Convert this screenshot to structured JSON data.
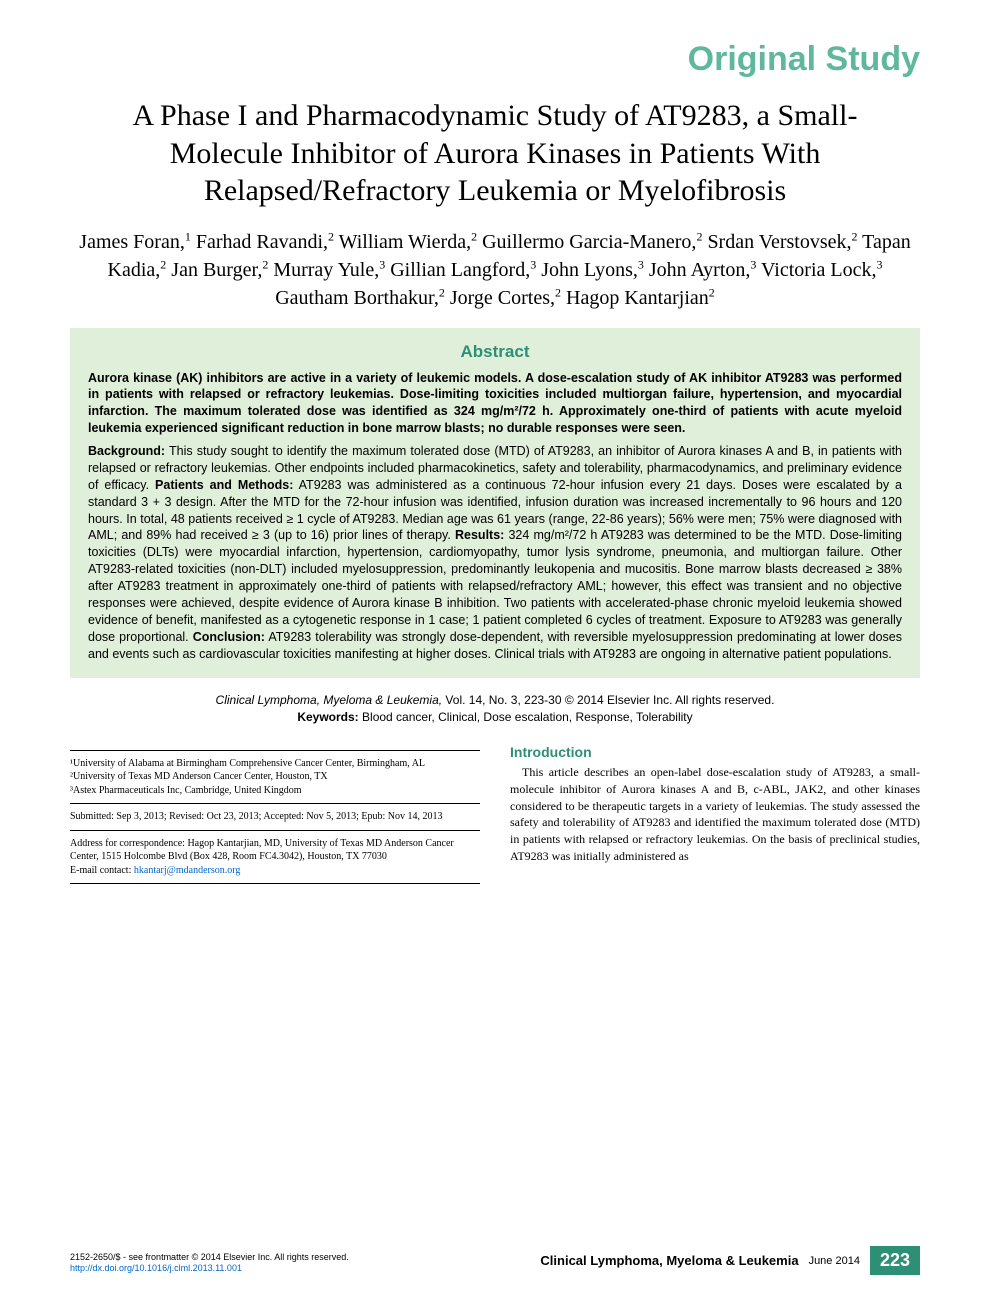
{
  "header": {
    "category": "Original Study"
  },
  "title": "A Phase I and Pharmacodynamic Study of AT9283, a Small-Molecule Inhibitor of Aurora Kinases in Patients With Relapsed/Refractory Leukemia or Myelofibrosis",
  "authors_html": "James Foran,<sup>1</sup> Farhad Ravandi,<sup>2</sup> William Wierda,<sup>2</sup> Guillermo Garcia-Manero,<sup>2</sup> Srdan Verstovsek,<sup>2</sup> Tapan Kadia,<sup>2</sup> Jan Burger,<sup>2</sup> Murray Yule,<sup>3</sup> Gillian Langford,<sup>3</sup> John Lyons,<sup>3</sup> John Ayrton,<sup>3</sup> Victoria Lock,<sup>3</sup> Gautham Borthakur,<sup>2</sup> Jorge Cortes,<sup>2</sup> Hagop Kantarjian<sup>2</sup>",
  "abstract": {
    "heading": "Abstract",
    "lead": "Aurora kinase (AK) inhibitors are active in a variety of leukemic models. A dose-escalation study of AK inhibitor AT9283 was performed in patients with relapsed or refractory leukemias. Dose-limiting toxicities included multiorgan failure, hypertension, and myocardial infarction. The maximum tolerated dose was identified as 324 mg/m²/72 h. Approximately one-third of patients with acute myeloid leukemia experienced significant reduction in bone marrow blasts; no durable responses were seen.",
    "body_html": "<b>Background:</b> This study sought to identify the maximum tolerated dose (MTD) of AT9283, an inhibitor of Aurora kinases A and B, in patients with relapsed or refractory leukemias. Other endpoints included pharmacokinetics, safety and tolerability, pharmacodynamics, and preliminary evidence of efficacy. <b>Patients and Methods:</b> AT9283 was administered as a continuous 72-hour infusion every 21 days. Doses were escalated by a standard 3 + 3 design. After the MTD for the 72-hour infusion was identified, infusion duration was increased incrementally to 96 hours and 120 hours. In total, 48 patients received ≥ 1 cycle of AT9283. Median age was 61 years (range, 22-86 years); 56% were men; 75% were diagnosed with AML; and 89% had received ≥ 3 (up to 16) prior lines of therapy. <b>Results:</b> 324 mg/m²/72 h AT9283 was determined to be the MTD. Dose-limiting toxicities (DLTs) were myocardial infarction, hypertension, cardiomyopathy, tumor lysis syndrome, pneumonia, and multiorgan failure. Other AT9283-related toxicities (non-DLT) included myelosuppression, predominantly leukopenia and mucositis. Bone marrow blasts decreased ≥ 38% after AT9283 treatment in approximately one-third of patients with relapsed/refractory AML; however, this effect was transient and no objective responses were achieved, despite evidence of Aurora kinase B inhibition. Two patients with accelerated-phase chronic myeloid leukemia showed evidence of benefit, manifested as a cytogenetic response in 1 case; 1 patient completed 6 cycles of treatment. Exposure to AT9283 was generally dose proportional. <b>Conclusion:</b> AT9283 tolerability was strongly dose-dependent, with reversible myelosuppression predominating at lower doses and events such as cardiovascular toxicities manifesting at higher doses. Clinical trials with AT9283 are ongoing in alternative patient populations."
  },
  "citation": {
    "journal_line_html": "<i>Clinical Lymphoma, Myeloma & Leukemia,</i> Vol. 14, No. 3, 223-30 © 2014 Elsevier Inc. All rights reserved.",
    "keywords_html": "<b>Keywords:</b> Blood cancer, Clinical, Dose escalation, Response, Tolerability"
  },
  "affiliations": {
    "a1": "¹University of Alabama at Birmingham Comprehensive Cancer Center, Birmingham, AL",
    "a2": "²University of Texas MD Anderson Cancer Center, Houston, TX",
    "a3": "³Astex Pharmaceuticals Inc, Cambridge, United Kingdom",
    "dates": "Submitted: Sep 3, 2013; Revised: Oct 23, 2013; Accepted: Nov 5, 2013; Epub: Nov 14, 2013",
    "corr1": "Address for correspondence: Hagop Kantarjian, MD, University of Texas MD Anderson Cancer Center, 1515 Holcombe Blvd (Box 428, Room FC4.3042), Houston, TX 77030",
    "corr2_html": "E-mail contact: <a href='#'>hkantarj@mdanderson.org</a>"
  },
  "intro": {
    "heading": "Introduction",
    "text": "This article describes an open-label dose-escalation study of AT9283, a small-molecule inhibitor of Aurora kinases A and B, c-ABL, JAK2, and other kinases considered to be therapeutic targets in a variety of leukemias. The study assessed the safety and tolerability of AT9283 and identified the maximum tolerated dose (MTD) in patients with relapsed or refractory leukemias. On the basis of preclinical studies, AT9283 was initially administered as"
  },
  "footer": {
    "left1": "2152-2650/$ - see frontmatter © 2014 Elsevier Inc. All rights reserved.",
    "left2_html": "<a href='#'>http://dx.doi.org/10.1016/j.clml.2013.11.001</a>",
    "journal": "Clinical Lymphoma, Myeloma & Leukemia",
    "date": "June 2014",
    "page": "223"
  },
  "colors": {
    "accent": "#2d8f75",
    "light_accent": "#5fb89e",
    "abstract_bg": "#e0efd9",
    "link": "#0066cc"
  }
}
